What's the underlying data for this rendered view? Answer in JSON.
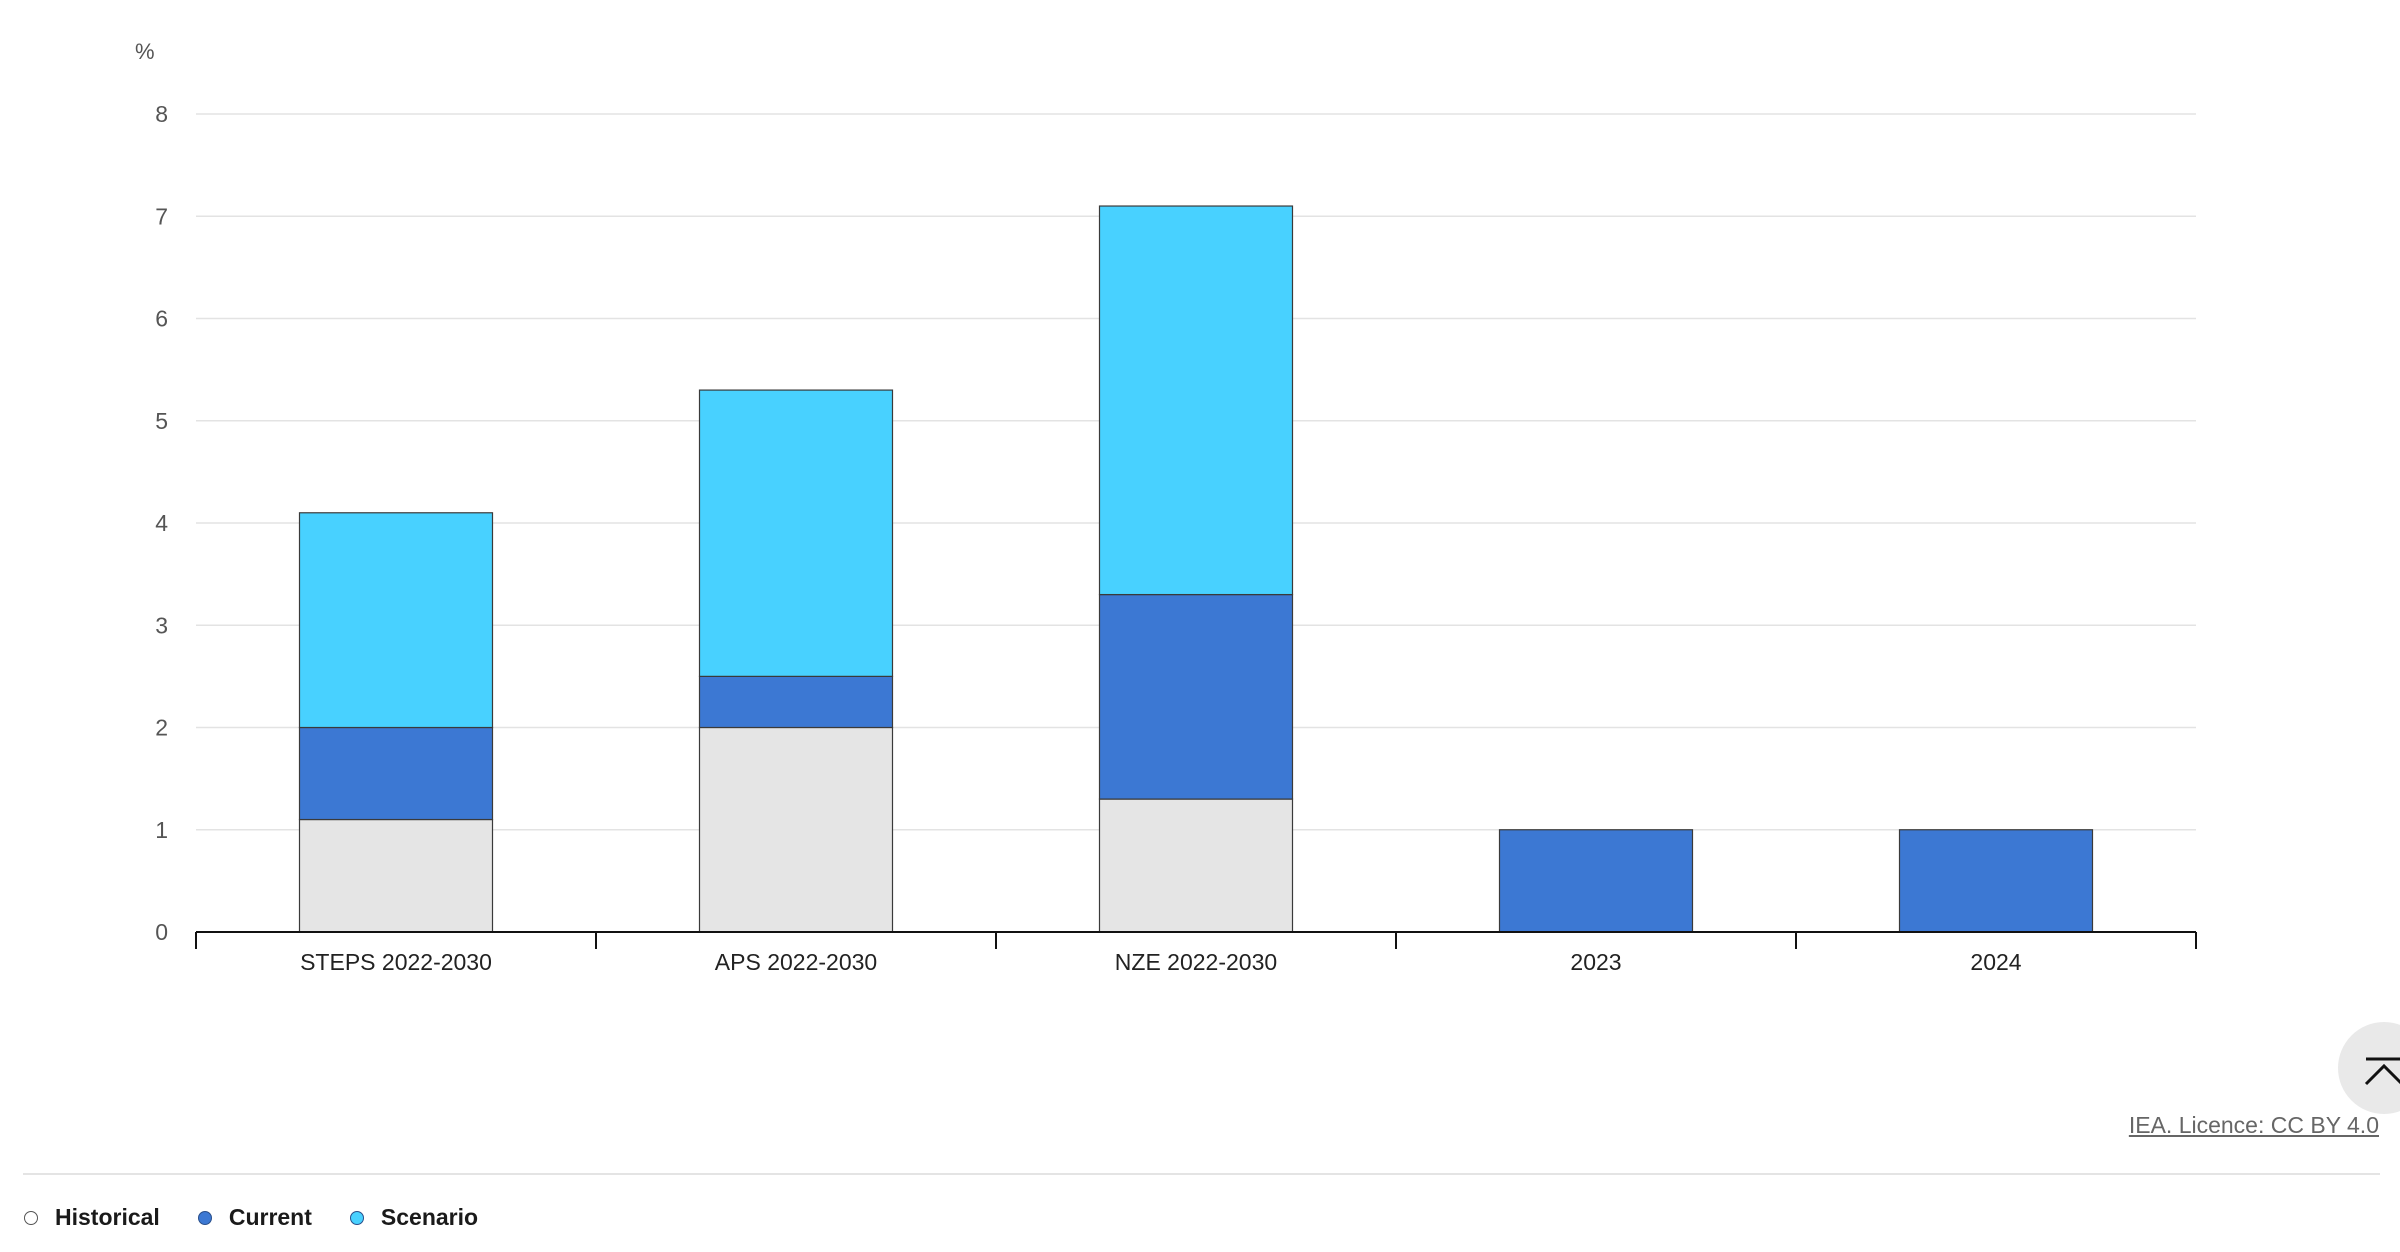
{
  "chart_data": {
    "type": "bar",
    "stacked": true,
    "y_unit_label": "%",
    "categories": [
      "STEPS 2022-2030",
      "APS 2022-2030",
      "NZE 2022-2030",
      "2023",
      "2024"
    ],
    "series": [
      {
        "name": "Historical",
        "color": "#e5e5e5",
        "values": [
          1.1,
          2.0,
          1.3,
          0,
          0
        ]
      },
      {
        "name": "Current",
        "color": "#3c78d3",
        "values": [
          0.9,
          0.5,
          2.0,
          1.0,
          1.0
        ]
      },
      {
        "name": "Scenario",
        "color": "#48d1ff",
        "values": [
          2.1,
          2.8,
          3.8,
          0,
          0
        ]
      }
    ],
    "ylim": [
      0,
      8
    ],
    "yticks": [
      0,
      1,
      2,
      3,
      4,
      5,
      6,
      7,
      8
    ],
    "grid": true,
    "legend_position": "bottom-left"
  },
  "licence_text": "IEA. Licence: CC BY 4.0",
  "scroll_top_icon": "chevron-up-bar-icon"
}
